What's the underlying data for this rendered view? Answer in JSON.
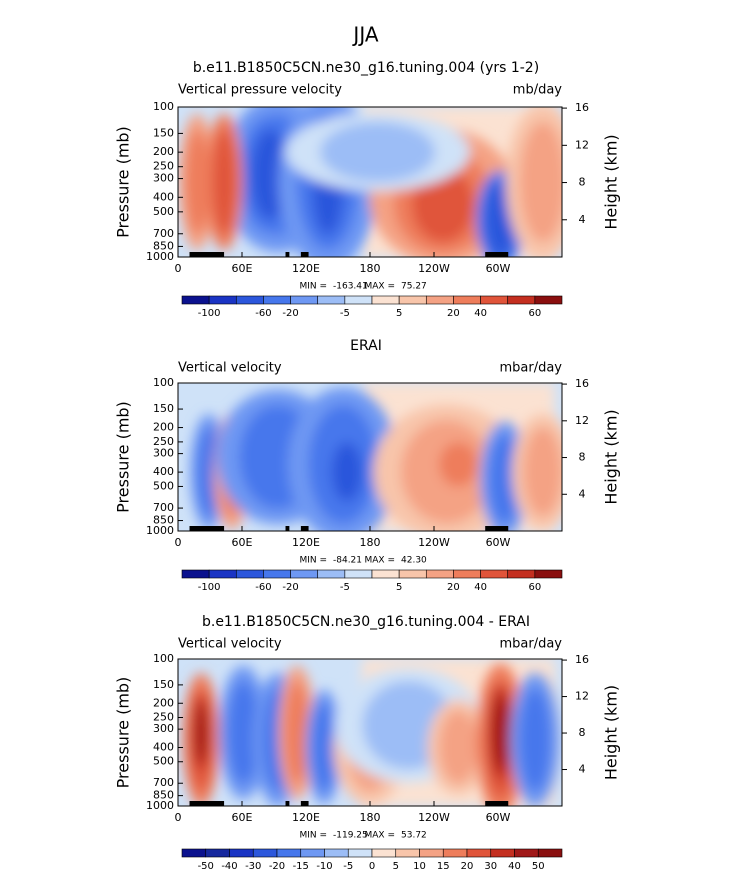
{
  "title": "JJA",
  "panels": [
    {
      "type": "contour",
      "title": "b.e11.B1850C5CN.ne30_g16.tuning.004 (yrs 1-2)",
      "left_label": "Vertical pressure velocity",
      "units": "mb/day",
      "ylabel": "Pressure (mb)",
      "y2label": "Height (km)",
      "xlim": [
        0,
        360
      ],
      "xticks": [
        0,
        {
          "value": 60,
          "label": "60E"
        },
        {
          "value": 120,
          "label": "120E"
        },
        180,
        {
          "value": 240,
          "label": "120W"
        },
        {
          "value": 300,
          "label": "60W"
        }
      ],
      "ylim": [
        1000,
        100
      ],
      "yticks": [
        100,
        150,
        200,
        250,
        300,
        400,
        500,
        700,
        850,
        1000
      ],
      "y2ticks": [
        4,
        8,
        12,
        16
      ],
      "min_label": "MIN =",
      "min": -163.41,
      "max_label": "MAX =",
      "max": 75.27,
      "colorbar": {
        "colors": [
          "#0b128e",
          "#1a34c4",
          "#2c57dc",
          "#4677ec",
          "#6e98f3",
          "#9cbdf6",
          "#cfe2f8",
          "#fbe2d2",
          "#f8c5aa",
          "#f4a284",
          "#ee7d5b",
          "#e0543a",
          "#c42f20",
          "#8a0f0f"
        ],
        "labels": [
          -100,
          -60,
          -20,
          -5,
          5,
          20,
          40,
          60
        ]
      }
    },
    {
      "type": "contour",
      "title": "ERAI",
      "left_label": "Vertical velocity",
      "units": "mbar/day",
      "ylabel": "Pressure (mb)",
      "y2label": "Height (km)",
      "xlim": [
        0,
        360
      ],
      "xticks": [
        0,
        {
          "value": 60,
          "label": "60E"
        },
        {
          "value": 120,
          "label": "120E"
        },
        180,
        {
          "value": 240,
          "label": "120W"
        },
        {
          "value": 300,
          "label": "60W"
        }
      ],
      "ylim": [
        1000,
        100
      ],
      "yticks": [
        100,
        150,
        200,
        250,
        300,
        400,
        500,
        700,
        850,
        1000
      ],
      "y2ticks": [
        4,
        8,
        12,
        16
      ],
      "min_label": "MIN =",
      "min": -84.21,
      "max_label": "MAX =",
      "max": {
        "value": 42.3,
        "label": "42.30"
      },
      "colorbar": {
        "colors": [
          "#0b128e",
          "#1a34c4",
          "#2c57dc",
          "#4677ec",
          "#6e98f3",
          "#9cbdf6",
          "#cfe2f8",
          "#fbe2d2",
          "#f8c5aa",
          "#f4a284",
          "#ee7d5b",
          "#e0543a",
          "#c42f20",
          "#8a0f0f"
        ],
        "labels": [
          -100,
          -60,
          -20,
          -5,
          5,
          20,
          40,
          60
        ]
      }
    },
    {
      "type": "contour",
      "title": "b.e11.B1850C5CN.ne30_g16.tuning.004 - ERAI",
      "left_label": "Vertical velocity",
      "units": "mbar/day",
      "ylabel": "Pressure (mb)",
      "y2label": "Height (km)",
      "xlim": [
        0,
        360
      ],
      "xticks": [
        0,
        {
          "value": 60,
          "label": "60E"
        },
        {
          "value": 120,
          "label": "120E"
        },
        180,
        {
          "value": 240,
          "label": "120W"
        },
        {
          "value": 300,
          "label": "60W"
        }
      ],
      "ylim": [
        1000,
        100
      ],
      "yticks": [
        100,
        150,
        200,
        250,
        300,
        400,
        500,
        700,
        850,
        1000
      ],
      "y2ticks": [
        4,
        8,
        12,
        16
      ],
      "min_label": "MIN =",
      "min": -119.25,
      "max_label": "MAX =",
      "max": 53.72,
      "colorbar": {
        "colors": [
          "#0b128e",
          "#16289e",
          "#1a34c4",
          "#2c57dc",
          "#4677ec",
          "#6e98f3",
          "#9cbdf6",
          "#cfe2f8",
          "#fbe2d2",
          "#f8c5aa",
          "#f4a284",
          "#ee7d5b",
          "#e0543a",
          "#c42f20",
          "#a01818",
          "#8a0f0f"
        ],
        "labels": [
          -50,
          -40,
          -30,
          -20,
          -15,
          -10,
          -5,
          0,
          5,
          10,
          15,
          20,
          30,
          40,
          50
        ]
      }
    }
  ]
}
